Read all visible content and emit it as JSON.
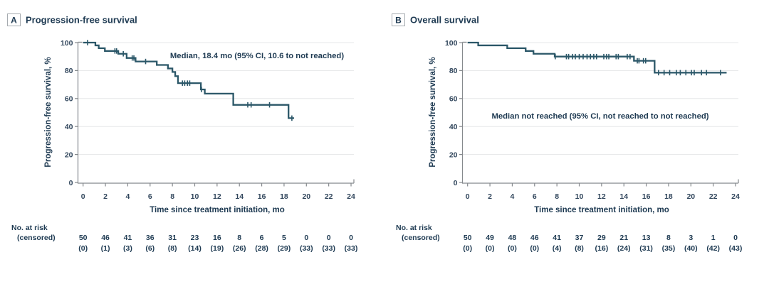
{
  "figure": {
    "colors": {
      "curve": "#2b5768",
      "text_dark": "#1e3a52",
      "tick_label": "#31465c",
      "axis_line": "#85898d",
      "gridline": "#e6e7e8",
      "label_box_border": "#a6abb0",
      "background": "#ffffff"
    }
  },
  "chart_data": [
    {
      "type": "line",
      "subtype": "kaplan-meier-step",
      "panel_label": "A",
      "title": "Progression-free survival",
      "annotation": "Median, 18.4 mo (95% CI, 10.6 to not reached)",
      "annotation_xy": [
        361,
        82
      ],
      "xlabel": "Time since treatment initiation, mo",
      "ylabel": "Progression-free survival, %",
      "xlim": [
        0,
        24
      ],
      "ylim": [
        0,
        100
      ],
      "xticks": [
        0,
        2,
        4,
        6,
        8,
        10,
        12,
        14,
        16,
        18,
        20,
        22,
        24
      ],
      "yticks": [
        0,
        20,
        40,
        60,
        80,
        100
      ],
      "grid": "horizontal",
      "legend": "none",
      "steps": [
        [
          0,
          100
        ],
        [
          1.1,
          98
        ],
        [
          1.4,
          96
        ],
        [
          1.95,
          94
        ],
        [
          3.15,
          92
        ],
        [
          3.9,
          89
        ],
        [
          4.7,
          86.5
        ],
        [
          6.6,
          84
        ],
        [
          7.6,
          81.5
        ],
        [
          8.0,
          79
        ],
        [
          8.25,
          76
        ],
        [
          8.5,
          71
        ],
        [
          10.55,
          66.5
        ],
        [
          10.9,
          63.5
        ],
        [
          13.45,
          55.5
        ],
        [
          18.4,
          46
        ]
      ],
      "curve_end": 18.9,
      "censor_marks": [
        [
          0.4,
          100
        ],
        [
          2.85,
          94
        ],
        [
          3.0,
          94
        ],
        [
          3.6,
          92
        ],
        [
          4.4,
          89
        ],
        [
          4.55,
          89
        ],
        [
          5.6,
          86.5
        ],
        [
          8.9,
          71
        ],
        [
          9.1,
          71
        ],
        [
          9.35,
          71
        ],
        [
          9.55,
          71
        ],
        [
          10.6,
          66.5
        ],
        [
          14.75,
          55.5
        ],
        [
          15.05,
          55.5
        ],
        [
          16.7,
          55.5
        ],
        [
          18.7,
          46
        ]
      ],
      "at_risk": {
        "row_label_1": "No. at risk",
        "row_label_2": "(censored)",
        "times": [
          0,
          2,
          4,
          6,
          8,
          10,
          12,
          14,
          16,
          18,
          20,
          22,
          24
        ],
        "n_at_risk": [
          "50",
          "46",
          "41",
          "36",
          "31",
          "23",
          "16",
          "8",
          "6",
          "5",
          "0",
          "0",
          "0"
        ],
        "censored": [
          "(0)",
          "(1)",
          "(3)",
          "(6)",
          "(8)",
          "(14)",
          "(19)",
          "(26)",
          "(28)",
          "(29)",
          "(33)",
          "(33)",
          "(33)"
        ]
      }
    },
    {
      "type": "line",
      "subtype": "kaplan-meier-step",
      "panel_label": "B",
      "title": "Overall survival",
      "annotation": "Median not reached (95% CI, not reached to not reached)",
      "annotation_xy": [
        303,
        167
      ],
      "xlabel": "Time since treatment initiation, mo",
      "ylabel": "Progression-free survival, %",
      "xlim": [
        0,
        24
      ],
      "ylim": [
        0,
        100
      ],
      "xticks": [
        0,
        2,
        4,
        6,
        8,
        10,
        12,
        14,
        16,
        18,
        20,
        22,
        24
      ],
      "yticks": [
        0,
        20,
        40,
        60,
        80,
        100
      ],
      "grid": "horizontal",
      "legend": "none",
      "steps": [
        [
          0,
          100
        ],
        [
          0.95,
          98
        ],
        [
          3.55,
          96
        ],
        [
          5.2,
          94
        ],
        [
          5.9,
          92
        ],
        [
          7.8,
          90
        ],
        [
          14.9,
          87
        ],
        [
          16.75,
          78.5
        ]
      ],
      "curve_end": 23.2,
      "censor_marks": [
        [
          7.85,
          90
        ],
        [
          8.85,
          90
        ],
        [
          9.05,
          90
        ],
        [
          9.4,
          90
        ],
        [
          9.65,
          90
        ],
        [
          10.0,
          90
        ],
        [
          10.35,
          90
        ],
        [
          10.7,
          90
        ],
        [
          11.0,
          90
        ],
        [
          11.3,
          90
        ],
        [
          11.55,
          90
        ],
        [
          12.2,
          90
        ],
        [
          12.45,
          90
        ],
        [
          12.65,
          90
        ],
        [
          13.3,
          90
        ],
        [
          13.5,
          90
        ],
        [
          14.3,
          90
        ],
        [
          14.55,
          90
        ],
        [
          15.2,
          87
        ],
        [
          15.35,
          87
        ],
        [
          15.75,
          87
        ],
        [
          15.95,
          87
        ],
        [
          17.1,
          78.5
        ],
        [
          17.6,
          78.5
        ],
        [
          18.1,
          78.5
        ],
        [
          18.7,
          78.5
        ],
        [
          19.05,
          78.5
        ],
        [
          19.55,
          78.5
        ],
        [
          20.05,
          78.5
        ],
        [
          20.3,
          78.5
        ],
        [
          20.95,
          78.5
        ],
        [
          21.4,
          78.5
        ],
        [
          22.65,
          78.5
        ]
      ],
      "at_risk": {
        "row_label_1": "No. at risk",
        "row_label_2": "(censored)",
        "times": [
          0,
          2,
          4,
          6,
          8,
          10,
          12,
          14,
          16,
          18,
          20,
          22,
          24
        ],
        "n_at_risk": [
          "50",
          "49",
          "48",
          "46",
          "41",
          "37",
          "29",
          "21",
          "13",
          "8",
          "3",
          "1",
          "0"
        ],
        "censored": [
          "(0)",
          "(0)",
          "(0)",
          "(0)",
          "(4)",
          "(8)",
          "(16)",
          "(24)",
          "(31)",
          "(35)",
          "(40)",
          "(42)",
          "(43)"
        ]
      }
    }
  ]
}
